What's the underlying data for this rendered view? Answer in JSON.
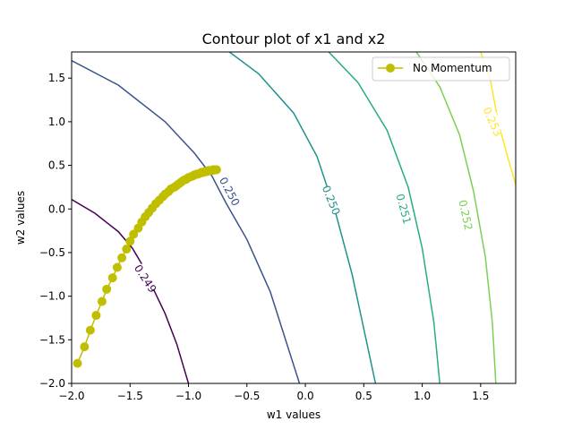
{
  "chart_data": {
    "type": "line",
    "title": "Contour plot of x1 and x2",
    "xlabel": "w1 values",
    "ylabel": "w2 values",
    "xlim": [
      -2.0,
      1.8
    ],
    "ylim": [
      -2.0,
      1.8
    ],
    "xticks": [
      -2.0,
      -1.5,
      -1.0,
      -0.5,
      0.0,
      0.5,
      1.0,
      1.5
    ],
    "xtick_labels": [
      "−2.0",
      "−1.5",
      "−1.0",
      "−0.5",
      "0.0",
      "0.5",
      "1.0",
      "1.5"
    ],
    "yticks": [
      -2.0,
      -1.5,
      -1.0,
      -0.5,
      0.0,
      0.5,
      1.0,
      1.5
    ],
    "ytick_labels": [
      "−2.0",
      "−1.5",
      "−1.0",
      "−0.5",
      "0.0",
      "0.5",
      "1.0",
      "1.5"
    ],
    "grid": false,
    "legend_position": "top-right",
    "contours": [
      {
        "level_label": "0.249",
        "color": "#440154",
        "points": [
          [
            -2.0,
            0.11
          ],
          [
            -1.8,
            -0.05
          ],
          [
            -1.6,
            -0.26
          ],
          [
            -1.48,
            -0.45
          ],
          [
            -1.4,
            -0.63
          ],
          [
            -1.3,
            -0.92
          ],
          [
            -1.2,
            -1.2
          ],
          [
            -1.1,
            -1.55
          ],
          [
            -1.0,
            -2.0
          ]
        ],
        "labels": [
          {
            "x": -1.37,
            "y": -0.8,
            "angle": 57
          }
        ]
      },
      {
        "level_label": "0.250",
        "color": "#3b528b",
        "points": [
          [
            -2.0,
            1.7
          ],
          [
            -1.6,
            1.42
          ],
          [
            -1.2,
            1.0
          ],
          [
            -0.95,
            0.64
          ],
          [
            -0.8,
            0.38
          ],
          [
            -0.68,
            0.07
          ],
          [
            -0.5,
            -0.35
          ],
          [
            -0.3,
            -0.95
          ],
          [
            -0.05,
            -2.0
          ]
        ],
        "labels": [
          {
            "x": -0.65,
            "y": 0.2,
            "angle": 62
          }
        ]
      },
      {
        "level_label": "0.250",
        "color": "#21918c",
        "points": [
          [
            -0.65,
            1.8
          ],
          [
            -0.4,
            1.55
          ],
          [
            -0.1,
            1.1
          ],
          [
            0.1,
            0.6
          ],
          [
            0.25,
            0.0
          ],
          [
            0.4,
            -0.75
          ],
          [
            0.6,
            -2.0
          ]
        ],
        "labels": [
          {
            "x": 0.22,
            "y": 0.1,
            "angle": 68
          }
        ]
      },
      {
        "level_label": "0.251",
        "color": "#27ad81",
        "points": [
          [
            0.2,
            1.8
          ],
          [
            0.45,
            1.45
          ],
          [
            0.7,
            0.9
          ],
          [
            0.88,
            0.25
          ],
          [
            1.0,
            -0.45
          ],
          [
            1.1,
            -1.3
          ],
          [
            1.15,
            -2.0
          ]
        ],
        "labels": [
          {
            "x": 0.84,
            "y": 0.0,
            "angle": 75
          }
        ]
      },
      {
        "level_label": "0.252",
        "color": "#7ad151",
        "points": [
          [
            0.95,
            1.8
          ],
          [
            1.15,
            1.4
          ],
          [
            1.32,
            0.85
          ],
          [
            1.44,
            0.2
          ],
          [
            1.54,
            -0.55
          ],
          [
            1.6,
            -1.3
          ],
          [
            1.63,
            -2.0
          ]
        ],
        "labels": [
          {
            "x": 1.37,
            "y": -0.07,
            "angle": 78
          }
        ]
      },
      {
        "level_label": "0.253",
        "color": "#fde725",
        "points": [
          [
            1.5,
            1.8
          ],
          [
            1.58,
            1.5
          ],
          [
            1.65,
            1.0
          ],
          [
            1.73,
            0.6
          ],
          [
            1.8,
            0.28
          ]
        ],
        "labels": [
          {
            "x": 1.6,
            "y": 1.0,
            "angle": 66
          }
        ]
      }
    ],
    "series": [
      {
        "name": "No Momentum",
        "color": "#bfbf00",
        "marker": "circle",
        "x": [
          -1.95,
          -1.89,
          -1.84,
          -1.79,
          -1.74,
          -1.7,
          -1.65,
          -1.61,
          -1.57,
          -1.53,
          -1.5,
          -1.47,
          -1.43,
          -1.4,
          -1.37,
          -1.34,
          -1.31,
          -1.28,
          -1.25,
          -1.22,
          -1.2,
          -1.17,
          -1.15,
          -1.12,
          -1.1,
          -1.08,
          -1.06,
          -1.04,
          -1.02,
          -1.0,
          -0.98,
          -0.96,
          -0.95,
          -0.93,
          -0.92,
          -0.9,
          -0.89,
          -0.87,
          -0.86,
          -0.85,
          -0.84,
          -0.83,
          -0.82,
          -0.81,
          -0.8,
          -0.79,
          -0.78,
          -0.77,
          -0.77,
          -0.76
        ],
        "y": [
          -1.77,
          -1.58,
          -1.39,
          -1.22,
          -1.06,
          -0.92,
          -0.79,
          -0.67,
          -0.56,
          -0.46,
          -0.37,
          -0.29,
          -0.22,
          -0.15,
          -0.09,
          -0.04,
          0.01,
          0.06,
          0.1,
          0.14,
          0.17,
          0.2,
          0.23,
          0.25,
          0.27,
          0.29,
          0.31,
          0.33,
          0.34,
          0.36,
          0.37,
          0.38,
          0.39,
          0.4,
          0.4,
          0.41,
          0.42,
          0.42,
          0.43,
          0.43,
          0.43,
          0.44,
          0.44,
          0.44,
          0.44,
          0.45,
          0.45,
          0.45,
          0.45,
          0.45
        ]
      }
    ]
  }
}
